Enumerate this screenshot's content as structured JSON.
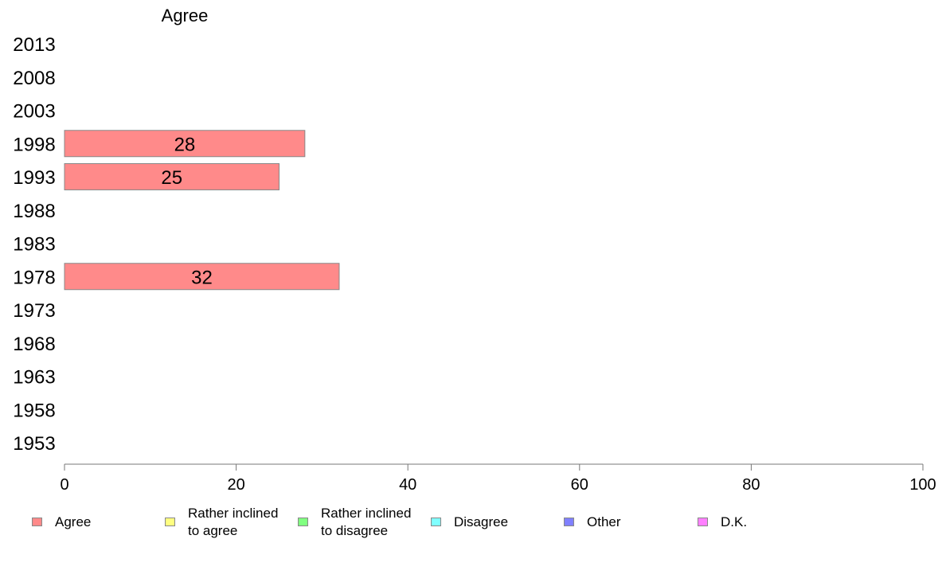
{
  "chart_data": {
    "type": "bar",
    "orientation": "horizontal",
    "title": "Agree",
    "categories": [
      "2013",
      "2008",
      "2003",
      "1998",
      "1993",
      "1988",
      "1983",
      "1978",
      "1973",
      "1968",
      "1963",
      "1958",
      "1953"
    ],
    "series": [
      {
        "name": "Agree",
        "values": [
          null,
          null,
          null,
          28,
          25,
          null,
          null,
          32,
          null,
          null,
          null,
          null,
          null
        ],
        "color": "#ff8a8a"
      }
    ],
    "xlim": [
      0,
      100
    ],
    "xticks": [
      0,
      20,
      40,
      60,
      80,
      100
    ],
    "grid": false,
    "legend_placement": "bottom",
    "legend": [
      {
        "label": "Agree",
        "color": "#ff8a8a"
      },
      {
        "label": "Rather inclined\nto agree",
        "color": "#ffff80"
      },
      {
        "label": "Rather inclined\nto disagree",
        "color": "#80ff80"
      },
      {
        "label": "Disagree",
        "color": "#80ffff"
      },
      {
        "label": "Other",
        "color": "#8080ff"
      },
      {
        "label": "D.K.",
        "color": "#ff80ff"
      }
    ]
  }
}
